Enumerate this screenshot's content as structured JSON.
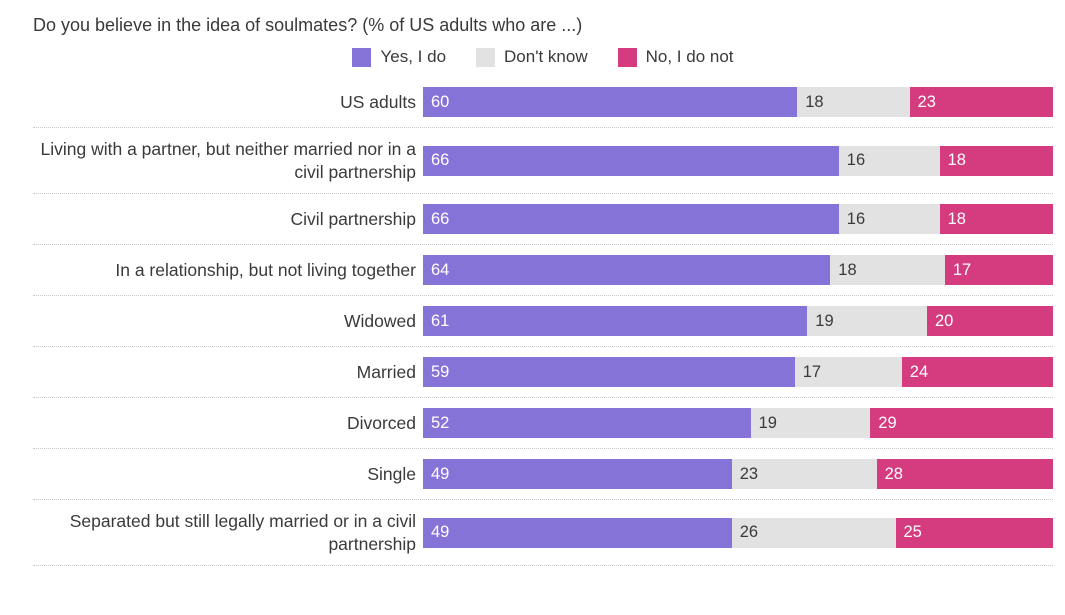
{
  "title": "Do you believe in the idea of soulmates? (% of US adults who are ...)",
  "legend": [
    {
      "label": "Yes, I do",
      "color": "#8673d8",
      "value_color": "#ffffff"
    },
    {
      "label": "Don't know",
      "color": "#e2e2e2",
      "value_color": "#3a3a3a"
    },
    {
      "label": "No, I do not",
      "color": "#d53b7f",
      "value_color": "#ffffff"
    }
  ],
  "chart_data": {
    "type": "bar",
    "orientation": "horizontal",
    "stacked": true,
    "normalized_to_100": true,
    "title": "Do you believe in the idea of soulmates? (% of US adults who are ...)",
    "legend_position": "top",
    "grid": "dotted row separators",
    "categories": [
      "US adults",
      "Living with a partner, but neither married nor in a civil partnership",
      "Civil partnership",
      "In a relationship, but not living together",
      "Widowed",
      "Married",
      "Divorced",
      "Single",
      "Separated but still legally married or in a civil partnership"
    ],
    "series": [
      {
        "name": "Yes, I do",
        "color": "#8673d8",
        "value_color": "#ffffff",
        "values": [
          60,
          66,
          66,
          64,
          61,
          59,
          52,
          49,
          49
        ]
      },
      {
        "name": "Don't know",
        "color": "#e2e2e2",
        "value_color": "#3a3a3a",
        "values": [
          18,
          16,
          16,
          18,
          19,
          17,
          19,
          23,
          26
        ]
      },
      {
        "name": "No, I do not",
        "color": "#d53b7f",
        "value_color": "#ffffff",
        "values": [
          23,
          18,
          18,
          17,
          20,
          24,
          29,
          28,
          25
        ]
      }
    ]
  }
}
